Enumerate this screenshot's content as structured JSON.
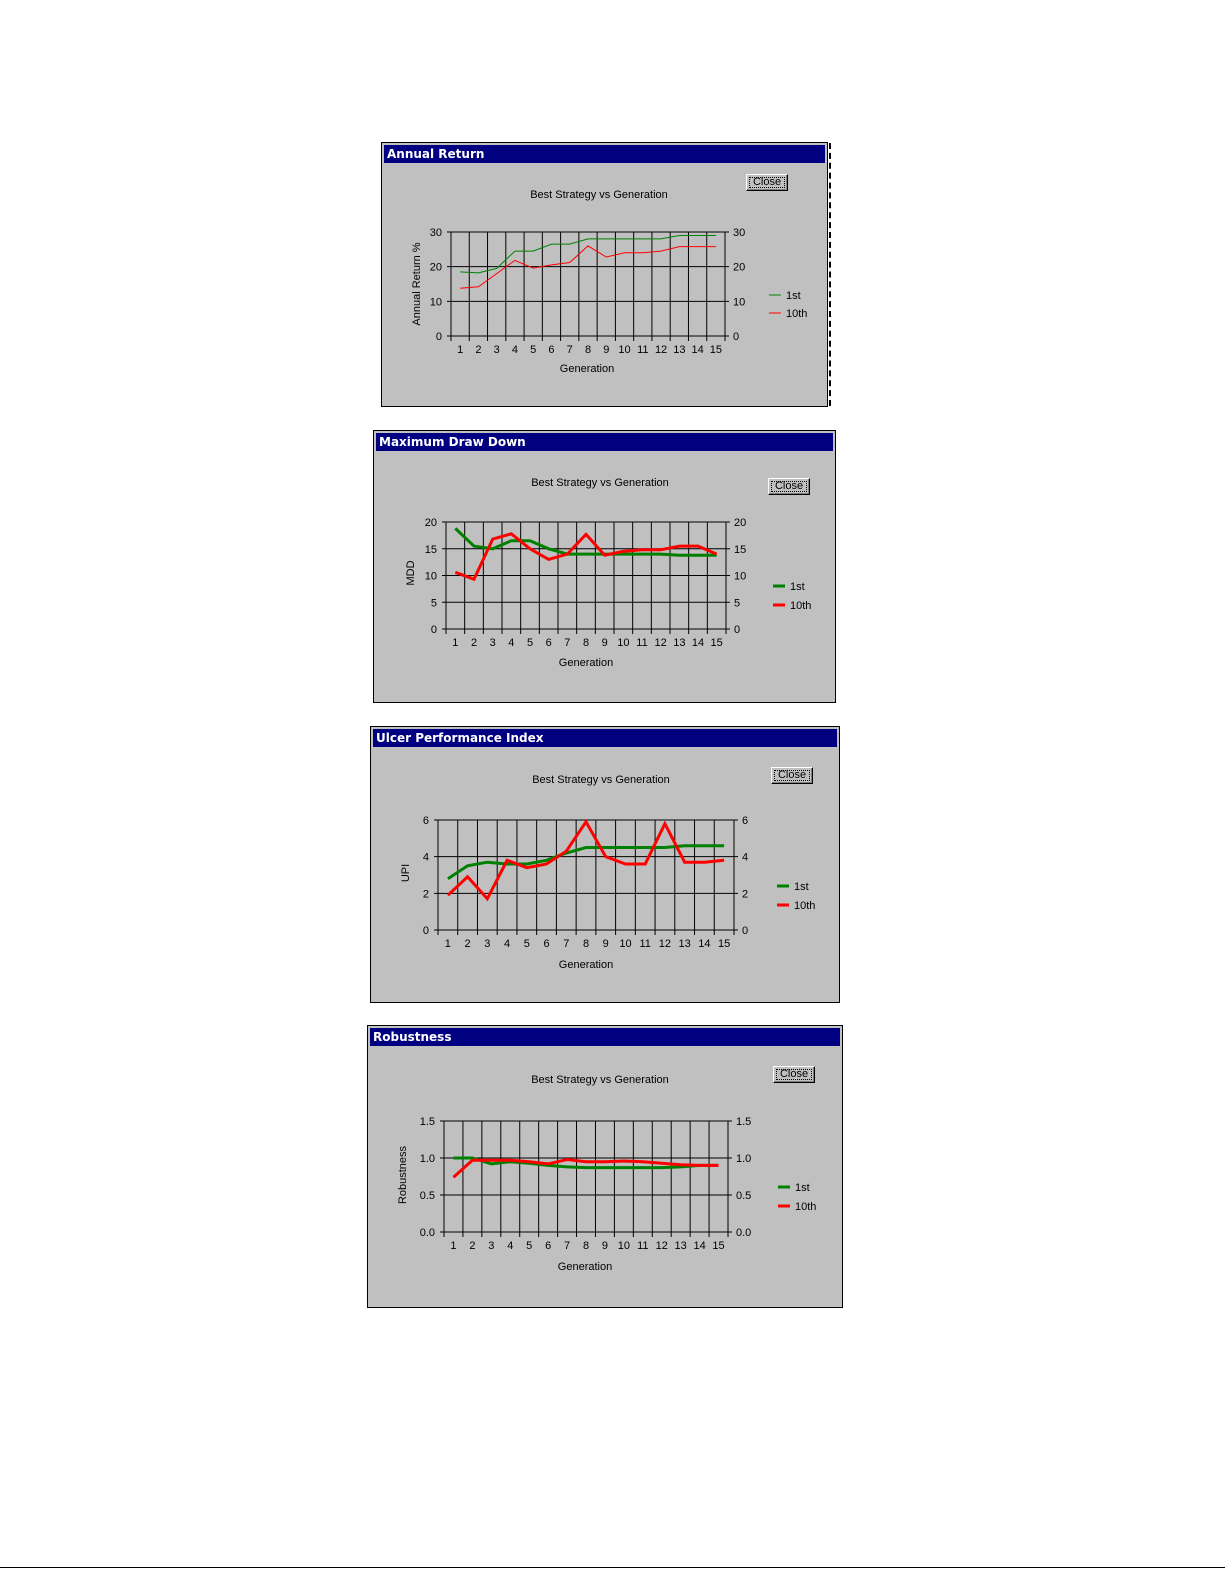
{
  "windows": [
    {
      "title": "Annual Return",
      "close_label": "Close",
      "chart_data": {
        "type": "line",
        "title": "Best Strategy vs Generation",
        "xlabel": "Generation",
        "ylabel": "Annual Return %",
        "x": [
          1,
          2,
          3,
          4,
          5,
          6,
          7,
          8,
          9,
          10,
          11,
          12,
          13,
          14,
          15
        ],
        "ylim": [
          0,
          30
        ],
        "yticks": [
          "0",
          "10",
          "20",
          "30"
        ],
        "series": [
          {
            "name": "1st",
            "color": "#008000",
            "values": [
              18.5,
              18.2,
              19.5,
              24.5,
              24.5,
              26.5,
              26.5,
              28,
              28,
              28,
              28,
              28,
              29,
              29,
              29
            ]
          },
          {
            "name": "10th",
            "color": "#ff0000",
            "values": [
              13.8,
              14.2,
              18,
              21.8,
              19.6,
              20.5,
              21.2,
              26,
              22.8,
              24,
              24,
              24.5,
              25.8,
              25.8,
              25.8
            ]
          }
        ],
        "legend": [
          "1st",
          "10th"
        ],
        "line_width": 1
      }
    },
    {
      "title": "Maximum Draw Down",
      "close_label": "Close",
      "chart_data": {
        "type": "line",
        "title": "Best Strategy vs Generation",
        "xlabel": "Generation",
        "ylabel": "MDD",
        "x": [
          1,
          2,
          3,
          4,
          5,
          6,
          7,
          8,
          9,
          10,
          11,
          12,
          13,
          14,
          15
        ],
        "ylim": [
          0,
          20
        ],
        "yticks": [
          "0",
          "5",
          "10",
          "15",
          "20"
        ],
        "series": [
          {
            "name": "1st",
            "color": "#008000",
            "values": [
              18.8,
              15.5,
              15,
              16.5,
              16.5,
              15,
              14,
              14,
              14,
              14,
              14,
              14,
              13.8,
              13.8,
              13.8
            ]
          },
          {
            "name": "10th",
            "color": "#ff0000",
            "values": [
              10.6,
              9.3,
              16.8,
              17.8,
              15,
              13,
              14,
              17.7,
              13.8,
              14.5,
              14.8,
              14.8,
              15.5,
              15.5,
              14
            ]
          }
        ],
        "legend": [
          "1st",
          "10th"
        ],
        "line_width": 3
      }
    },
    {
      "title": "Ulcer Performance Index",
      "close_label": "Close",
      "chart_data": {
        "type": "line",
        "title": "Best Strategy vs Generation",
        "xlabel": "Generation",
        "ylabel": "UPI",
        "x": [
          1,
          2,
          3,
          4,
          5,
          6,
          7,
          8,
          9,
          10,
          11,
          12,
          13,
          14,
          15
        ],
        "ylim": [
          0,
          6
        ],
        "yticks": [
          "0",
          "2",
          "4",
          "6"
        ],
        "series": [
          {
            "name": "1st",
            "color": "#008000",
            "values": [
              2.8,
              3.5,
              3.7,
              3.6,
              3.6,
              3.8,
              4.2,
              4.5,
              4.5,
              4.5,
              4.5,
              4.5,
              4.6,
              4.6,
              4.6
            ]
          },
          {
            "name": "10th",
            "color": "#ff0000",
            "values": [
              1.9,
              2.9,
              1.7,
              3.8,
              3.4,
              3.6,
              4.3,
              5.9,
              4,
              3.6,
              3.6,
              5.8,
              3.7,
              3.7,
              3.8
            ]
          }
        ],
        "legend": [
          "1st",
          "10th"
        ],
        "line_width": 3
      }
    },
    {
      "title": "Robustness",
      "close_label": "Close",
      "chart_data": {
        "type": "line",
        "title": "Best Strategy vs Generation",
        "xlabel": "Generation",
        "ylabel": "Robustness",
        "x": [
          1,
          2,
          3,
          4,
          5,
          6,
          7,
          8,
          9,
          10,
          11,
          12,
          13,
          14,
          15
        ],
        "ylim": [
          0,
          1.5
        ],
        "yticks": [
          "0.0",
          "0.5",
          "1.0",
          "1.5"
        ],
        "series": [
          {
            "name": "1st",
            "color": "#008000",
            "values": [
              1.0,
              1.0,
              0.92,
              0.95,
              0.93,
              0.9,
              0.88,
              0.87,
              0.87,
              0.87,
              0.87,
              0.87,
              0.88,
              0.9,
              0.9
            ]
          },
          {
            "name": "10th",
            "color": "#ff0000",
            "values": [
              0.74,
              0.97,
              0.97,
              0.97,
              0.95,
              0.92,
              0.98,
              0.95,
              0.95,
              0.96,
              0.95,
              0.93,
              0.91,
              0.9,
              0.9
            ]
          }
        ],
        "legend": [
          "1st",
          "10th"
        ],
        "line_width": 3
      }
    }
  ]
}
